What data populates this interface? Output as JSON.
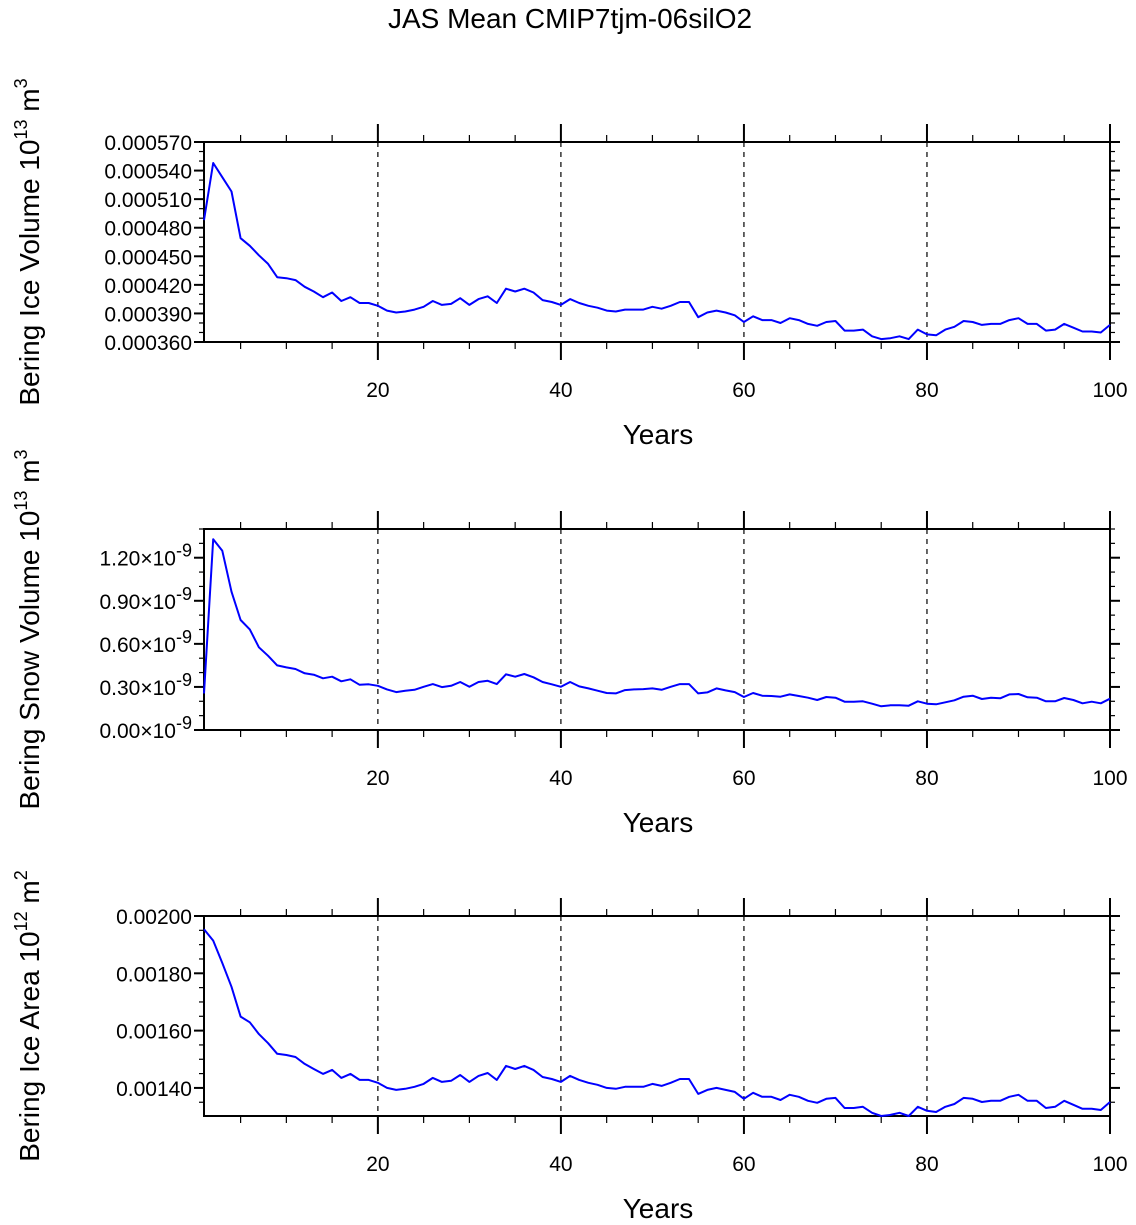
{
  "title": "JAS Mean CMIP7tjm-06silO2",
  "chart_data": [
    {
      "type": "line",
      "ylabel": {
        "text": "Bering Ice Volume 10",
        "exp": "13",
        "unit": " m",
        "unit_exp": "3"
      },
      "xlabel": "Years",
      "xlim": [
        1,
        100
      ],
      "ylim": [
        0.00036,
        0.00057
      ],
      "x_start": 1,
      "x_step": 1,
      "xticks": [
        20,
        40,
        60,
        80,
        100
      ],
      "xtick_labels": [
        "20",
        "40",
        "60",
        "80",
        "100"
      ],
      "xminor_step": 5,
      "grid_x": [
        20,
        40,
        60,
        80
      ],
      "yticks": [
        0.00036,
        0.00039,
        0.00042,
        0.00045,
        0.00048,
        0.00051,
        0.00054,
        0.00057
      ],
      "ytick_labels": [
        [
          "0.000360"
        ],
        [
          "0.000390"
        ],
        [
          "0.000420"
        ],
        [
          "0.000450"
        ],
        [
          "0.000480"
        ],
        [
          "0.000510"
        ],
        [
          "0.000540"
        ],
        [
          "0.000570"
        ]
      ],
      "yminor_step": 1e-05,
      "value_multiplier": 1,
      "color": "#0000ff",
      "values": [
        0.000488,
        0.000548,
        0.000533,
        0.000518,
        0.000469,
        0.000461,
        0.000451,
        0.000442,
        0.000428,
        0.000427,
        0.000425,
        0.000418,
        0.000413,
        0.000407,
        0.000412,
        0.000403,
        0.000407,
        0.000401,
        0.000401,
        0.000398,
        0.000393,
        0.000391,
        0.000392,
        0.000394,
        0.000397,
        0.000403,
        0.000399,
        0.0004,
        0.000406,
        0.000399,
        0.000405,
        0.000408,
        0.000401,
        0.000416,
        0.000413,
        0.000416,
        0.000412,
        0.000404,
        0.000402,
        0.000399,
        0.000405,
        0.000401,
        0.000398,
        0.000396,
        0.000393,
        0.000392,
        0.000394,
        0.000394,
        0.000394,
        0.000397,
        0.000395,
        0.000398,
        0.000402,
        0.000402,
        0.000386,
        0.000391,
        0.000393,
        0.000391,
        0.000388,
        0.000381,
        0.000387,
        0.000383,
        0.000383,
        0.00038,
        0.000385,
        0.000383,
        0.000379,
        0.000377,
        0.000381,
        0.000382,
        0.000372,
        0.000372,
        0.000373,
        0.000366,
        0.000363,
        0.000364,
        0.000366,
        0.000363,
        0.000373,
        0.000368,
        0.000367,
        0.000373,
        0.000376,
        0.000382,
        0.000381,
        0.000378,
        0.000379,
        0.000379,
        0.000383,
        0.000385,
        0.000379,
        0.000379,
        0.000372,
        0.000373,
        0.000379,
        0.000375,
        0.000371,
        0.000371,
        0.00037,
        0.000378
      ]
    },
    {
      "type": "line",
      "ylabel": {
        "text": "Bering Snow Volume 10",
        "exp": "13",
        "unit": " m",
        "unit_exp": "3"
      },
      "xlabel": "Years",
      "xlim": [
        1,
        100
      ],
      "ylim": [
        0,
        1.4
      ],
      "x_start": 1,
      "x_step": 1,
      "xticks": [
        20,
        40,
        60,
        80,
        100
      ],
      "xtick_labels": [
        "20",
        "40",
        "60",
        "80",
        "100"
      ],
      "xminor_step": 5,
      "grid_x": [
        20,
        40,
        60,
        80
      ],
      "yticks": [
        0,
        0.3,
        0.6,
        0.9,
        1.2
      ],
      "ytick_labels": [
        [
          "0.00",
          "×10",
          "-9"
        ],
        [
          "0.30",
          "×10",
          "-9"
        ],
        [
          "0.60",
          "×10",
          "-9"
        ],
        [
          "0.90",
          "×10",
          "-9"
        ],
        [
          "1.20",
          "×10",
          "-9"
        ]
      ],
      "yminor_step": 0.1,
      "value_multiplier": 1e-09,
      "color": "#0000ff",
      "values": [
        0.255,
        1.329,
        1.248,
        0.963,
        0.766,
        0.701,
        0.576,
        0.517,
        0.45,
        0.436,
        0.425,
        0.395,
        0.385,
        0.36,
        0.371,
        0.339,
        0.353,
        0.315,
        0.318,
        0.308,
        0.283,
        0.264,
        0.274,
        0.28,
        0.301,
        0.32,
        0.299,
        0.308,
        0.334,
        0.301,
        0.334,
        0.343,
        0.32,
        0.388,
        0.371,
        0.39,
        0.367,
        0.334,
        0.318,
        0.301,
        0.334,
        0.304,
        0.29,
        0.274,
        0.258,
        0.255,
        0.278,
        0.283,
        0.285,
        0.29,
        0.28,
        0.301,
        0.32,
        0.32,
        0.255,
        0.262,
        0.29,
        0.276,
        0.264,
        0.23,
        0.258,
        0.239,
        0.237,
        0.232,
        0.248,
        0.237,
        0.225,
        0.209,
        0.23,
        0.225,
        0.197,
        0.197,
        0.2,
        0.183,
        0.165,
        0.172,
        0.172,
        0.169,
        0.2,
        0.183,
        0.179,
        0.193,
        0.207,
        0.232,
        0.239,
        0.216,
        0.225,
        0.221,
        0.248,
        0.251,
        0.228,
        0.225,
        0.2,
        0.2,
        0.223,
        0.209,
        0.186,
        0.197,
        0.186,
        0.218
      ]
    },
    {
      "type": "line",
      "ylabel": {
        "text": "Bering Ice Area 10",
        "exp": "12",
        "unit": " m",
        "unit_exp": "2"
      },
      "xlabel": "Years",
      "xlim": [
        1,
        100
      ],
      "ylim": [
        0.001302,
        0.002
      ],
      "x_start": 1,
      "x_step": 1,
      "xticks": [
        20,
        40,
        60,
        80,
        100
      ],
      "xtick_labels": [
        "20",
        "40",
        "60",
        "80",
        "100"
      ],
      "xminor_step": 5,
      "grid_x": [
        20,
        40,
        60,
        80
      ],
      "yticks": [
        0.0014,
        0.0016,
        0.0018,
        0.002
      ],
      "ytick_labels": [
        [
          "0.00140"
        ],
        [
          "0.00160"
        ],
        [
          "0.00180"
        ],
        [
          "0.00200"
        ]
      ],
      "yminor_step": 5e-05,
      "value_multiplier": 1,
      "color": "#0000ff",
      "values": [
        0.001954,
        0.001914,
        0.001836,
        0.001753,
        0.001649,
        0.001629,
        0.001588,
        0.001556,
        0.001519,
        0.001515,
        0.001508,
        0.001484,
        0.001466,
        0.001449,
        0.001463,
        0.001435,
        0.001449,
        0.001428,
        0.001428,
        0.001418,
        0.0014,
        0.001393,
        0.001397,
        0.001404,
        0.001414,
        0.001435,
        0.001421,
        0.001425,
        0.001445,
        0.001421,
        0.001442,
        0.001452,
        0.001428,
        0.001477,
        0.001466,
        0.001477,
        0.001463,
        0.001438,
        0.001431,
        0.001421,
        0.001442,
        0.001428,
        0.001418,
        0.001411,
        0.0014,
        0.001397,
        0.001404,
        0.001404,
        0.001404,
        0.001414,
        0.001407,
        0.001418,
        0.001431,
        0.001431,
        0.001379,
        0.001393,
        0.0014,
        0.001393,
        0.001386,
        0.001362,
        0.001383,
        0.001369,
        0.001369,
        0.001358,
        0.001376,
        0.001369,
        0.001355,
        0.001348,
        0.001362,
        0.001365,
        0.00133,
        0.00133,
        0.001334,
        0.001313,
        0.001302,
        0.001306,
        0.001313,
        0.001302,
        0.001334,
        0.00132,
        0.001316,
        0.001334,
        0.001344,
        0.001365,
        0.001362,
        0.001351,
        0.001355,
        0.001355,
        0.001369,
        0.001376,
        0.001355,
        0.001355,
        0.00133,
        0.001334,
        0.001355,
        0.001341,
        0.001327,
        0.001327,
        0.001323,
        0.001351
      ]
    }
  ]
}
